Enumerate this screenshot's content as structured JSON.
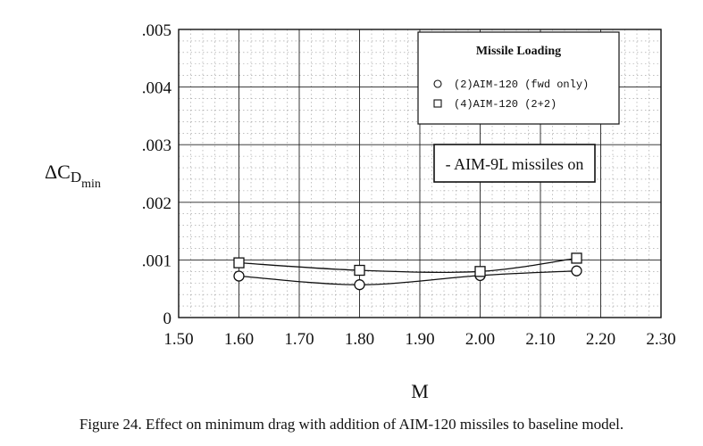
{
  "chart_data": {
    "type": "line",
    "title": "",
    "xlabel": "M",
    "ylabel": {
      "main": "ΔC",
      "sub1": "D",
      "sub2": "min"
    },
    "xlim": [
      1.5,
      2.3
    ],
    "ylim": [
      0,
      0.005
    ],
    "x_ticks": [
      "1.50",
      "1.60",
      "1.70",
      "1.80",
      "1.90",
      "2.00",
      "2.10",
      "2.20",
      "2.30"
    ],
    "y_ticks": [
      "0",
      ".001",
      ".002",
      ".003",
      ".004",
      ".005"
    ],
    "grid": true,
    "legend": {
      "title": "Missile Loading",
      "placement": "top-right",
      "entries": [
        "(2)AIM-120 (fwd only)",
        "(4)AIM-120 (2+2)"
      ]
    },
    "annotation": "- AIM-9L missiles on",
    "series": [
      {
        "name": "(2)AIM-120 (fwd only)",
        "marker": "circle",
        "x": [
          1.6,
          1.8,
          2.0,
          2.16
        ],
        "y": [
          0.00072,
          0.00057,
          0.00073,
          0.00081
        ]
      },
      {
        "name": "(4)AIM-120 (2+2)",
        "marker": "square",
        "x": [
          1.6,
          1.8,
          2.0,
          2.16
        ],
        "y": [
          0.00095,
          0.00082,
          0.0008,
          0.00103
        ]
      }
    ]
  },
  "caption": "Figure 24.  Effect on minimum drag with addition of AIM-120 missiles to baseline model."
}
